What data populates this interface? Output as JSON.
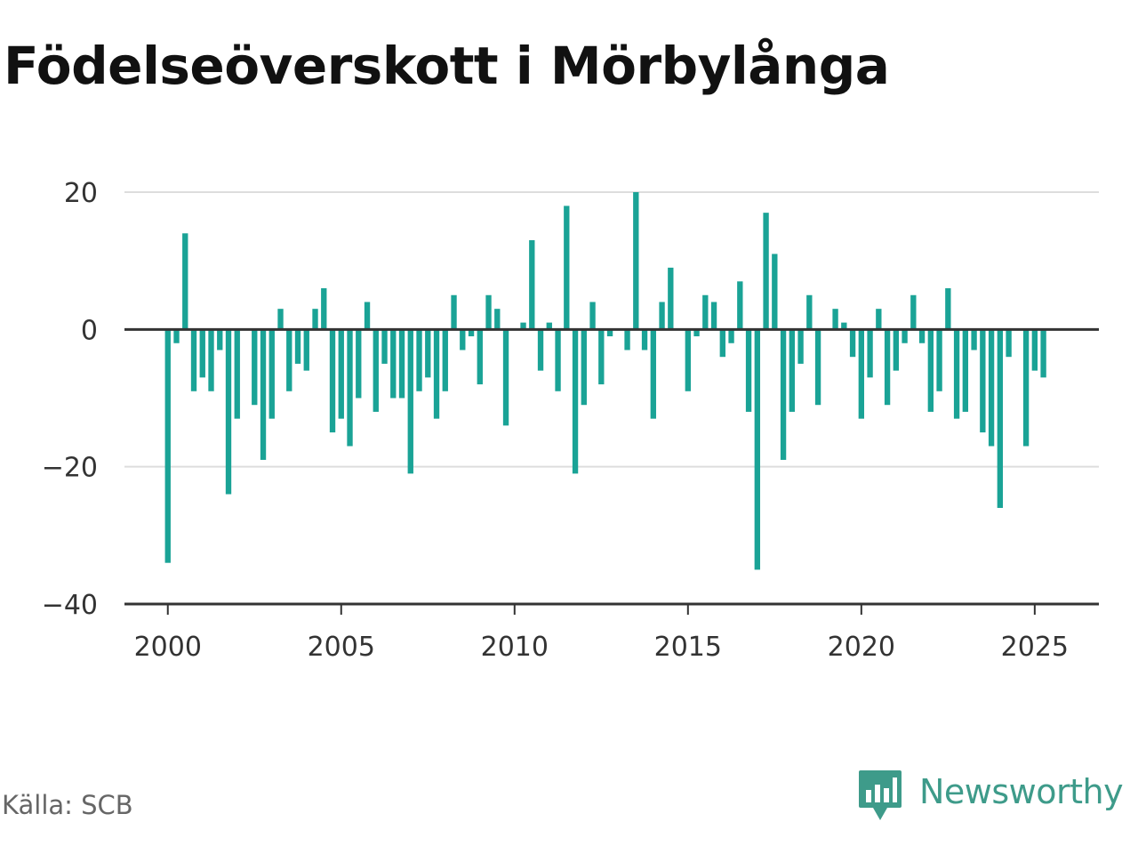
{
  "title": "Födelseöverskott i Mörbylånga",
  "source": "Källa: SCB",
  "brand": "Newsworthy",
  "colors": {
    "bar": "#1aa396",
    "brand": "#3e9b8a",
    "grid": "#dddddd",
    "zero_line": "#333333"
  },
  "chart_data": {
    "type": "bar",
    "title": "Födelseöverskott i Mörbylånga",
    "xlabel": "",
    "ylabel": "",
    "x_start": 2000,
    "periods_per_year": 4,
    "ylim": [
      -40,
      20
    ],
    "xlim": [
      1998.75,
      2026.85
    ],
    "yticks": [
      20,
      0,
      -20,
      -40
    ],
    "xticks": [
      2000,
      2005,
      2010,
      2015,
      2020,
      2025
    ],
    "grid": true,
    "values": [
      -34,
      -2,
      14,
      -9,
      -7,
      -9,
      -3,
      -24,
      -13,
      0,
      -11,
      -19,
      -13,
      3,
      -9,
      -5,
      -6,
      3,
      6,
      -15,
      -13,
      -17,
      -10,
      4,
      -12,
      -5,
      -10,
      -10,
      -21,
      -9,
      -7,
      -13,
      -9,
      5,
      -3,
      -1,
      -8,
      5,
      3,
      -14,
      0,
      1,
      13,
      -6,
      1,
      -9,
      18,
      -21,
      -11,
      4,
      -8,
      -1,
      0,
      -3,
      20,
      -3,
      -13,
      4,
      9,
      0,
      -9,
      -1,
      5,
      4,
      -4,
      -2,
      7,
      -12,
      -35,
      17,
      11,
      -19,
      -12,
      -5,
      5,
      -11,
      0,
      3,
      1,
      -4,
      -13,
      -7,
      3,
      -11,
      -6,
      -2,
      5,
      -2,
      -12,
      -9,
      6,
      -13,
      -12,
      -3,
      -15,
      -17,
      -26,
      -4,
      0,
      -17,
      -6,
      -7
    ]
  }
}
